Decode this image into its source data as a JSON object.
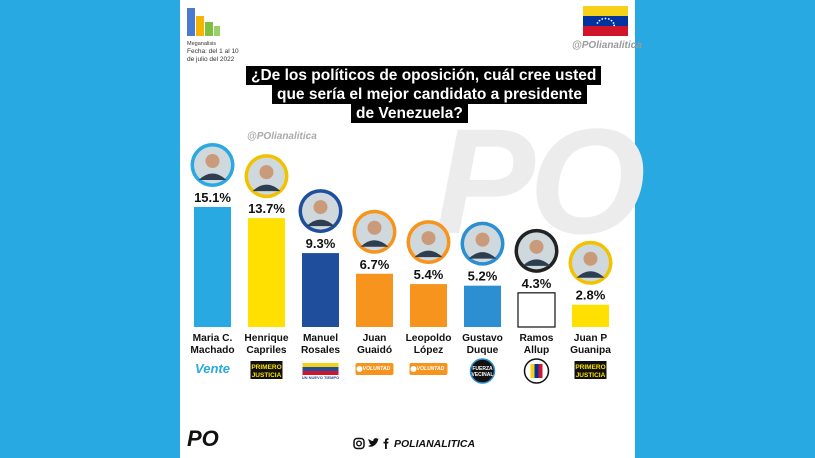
{
  "source": {
    "org": "Meganalisis",
    "date_line1": "Fecha: del 1 al 10",
    "date_line2": "de julio del 2022"
  },
  "handle_top": "@POlianalitica",
  "handle_mid": "@POlianalitica",
  "question_lines": [
    "¿De los políticos de oposición, cuál cree usted",
    "que sería el mejor candidato a presidente",
    "de Venezuela?"
  ],
  "watermark": "PO",
  "footer": {
    "logo": "PO",
    "handle": "POLIANALITICA",
    "icons": [
      "instagram-icon",
      "twitter-icon",
      "facebook-icon"
    ]
  },
  "flag_colors": [
    "#f7d117",
    "#0033a0",
    "#cf142b"
  ],
  "chart_data": {
    "type": "bar",
    "title": "¿De los políticos de oposición, cuál cree usted que sería el mejor candidato a presidente de Venezuela?",
    "xlabel": "",
    "ylabel": "",
    "ylim": [
      0,
      15.1
    ],
    "grid": false,
    "categories": [
      [
        "Maria C.",
        "Machado"
      ],
      [
        "Henrique",
        "Capriles"
      ],
      [
        "Manuel",
        "Rosales"
      ],
      [
        "Juan",
        "Guaidó"
      ],
      [
        "Leopoldo",
        "López"
      ],
      [
        "Gustavo",
        "Duque"
      ],
      [
        "Ramos",
        "Allup"
      ],
      [
        "Juan P",
        "Guanipa"
      ]
    ],
    "values": [
      15.1,
      13.7,
      9.3,
      6.7,
      5.4,
      5.2,
      4.3,
      2.8
    ],
    "value_labels": [
      "15.1%",
      "13.7%",
      "9.3%",
      "6.7%",
      "5.4%",
      "5.2%",
      "4.3%",
      "2.8%"
    ],
    "bar_colors": [
      "#29a9e1",
      "#ffe000",
      "#1f4e9c",
      "#f7941d",
      "#f7941d",
      "#2b8fd1",
      "#ffffff",
      "#ffe000"
    ],
    "ring_colors": [
      "#29a9e1",
      "#f2c200",
      "#1f4e9c",
      "#f7941d",
      "#f7941d",
      "#2b8fd1",
      "#222222",
      "#f2c200"
    ],
    "party_logos": [
      {
        "text": "Vente",
        "color": "#29a9e1",
        "style": "script"
      },
      {
        "text": "PRIMERO JUSTICIA",
        "color": "#111111",
        "style": "badge"
      },
      {
        "text": "UN NUEVO TIEMPO",
        "color": "#1f4e9c",
        "style": "flag"
      },
      {
        "text": "VOLUNTAD POPULAR",
        "color": "#f7941d",
        "style": "pill"
      },
      {
        "text": "VOLUNTAD POPULAR",
        "color": "#f7941d",
        "style": "pill"
      },
      {
        "text": "FUERZA VECINAL",
        "color": "#111111",
        "style": "circle"
      },
      {
        "text": "AD",
        "color": "#111111",
        "style": "seal"
      },
      {
        "text": "PRIMERO JUSTICIA",
        "color": "#111111",
        "style": "badge"
      }
    ]
  }
}
